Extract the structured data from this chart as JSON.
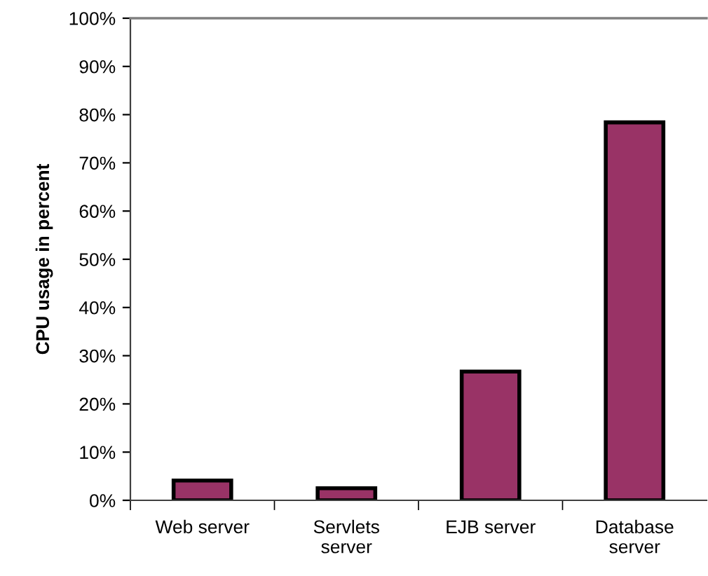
{
  "chart_data": {
    "type": "bar",
    "ylabel": "CPU usage in percent",
    "categories": [
      "Web server",
      "Servlets\nserver",
      "EJB server",
      "Database\nserver"
    ],
    "values": [
      4.1,
      2.5,
      26.7,
      78.4
    ],
    "color": "#993366",
    "ylim": [
      0,
      100
    ],
    "yticks": [
      {
        "value": 0,
        "label": "0%"
      },
      {
        "value": 10,
        "label": "10%"
      },
      {
        "value": 20,
        "label": "20%"
      },
      {
        "value": 30,
        "label": "30%"
      },
      {
        "value": 40,
        "label": "40%"
      },
      {
        "value": 50,
        "label": "50%"
      },
      {
        "value": 60,
        "label": "60%"
      },
      {
        "value": 70,
        "label": "70%"
      },
      {
        "value": 80,
        "label": "80%"
      },
      {
        "value": 90,
        "label": "90%"
      },
      {
        "value": 100,
        "label": "100%"
      }
    ],
    "grid": false,
    "legend": false
  }
}
